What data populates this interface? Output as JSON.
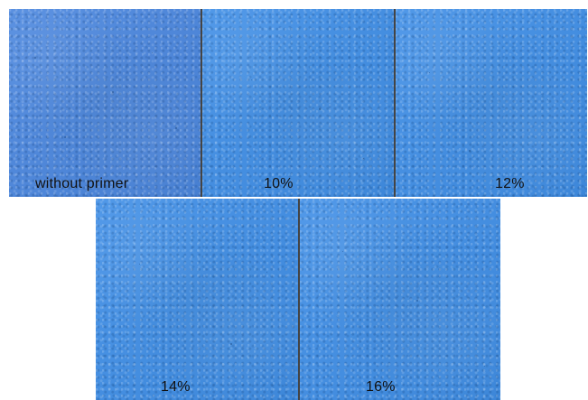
{
  "panels": [
    {
      "label": "without primer"
    },
    {
      "label": "10%"
    },
    {
      "label": "12%"
    },
    {
      "label": "14%"
    },
    {
      "label": "16%"
    }
  ]
}
